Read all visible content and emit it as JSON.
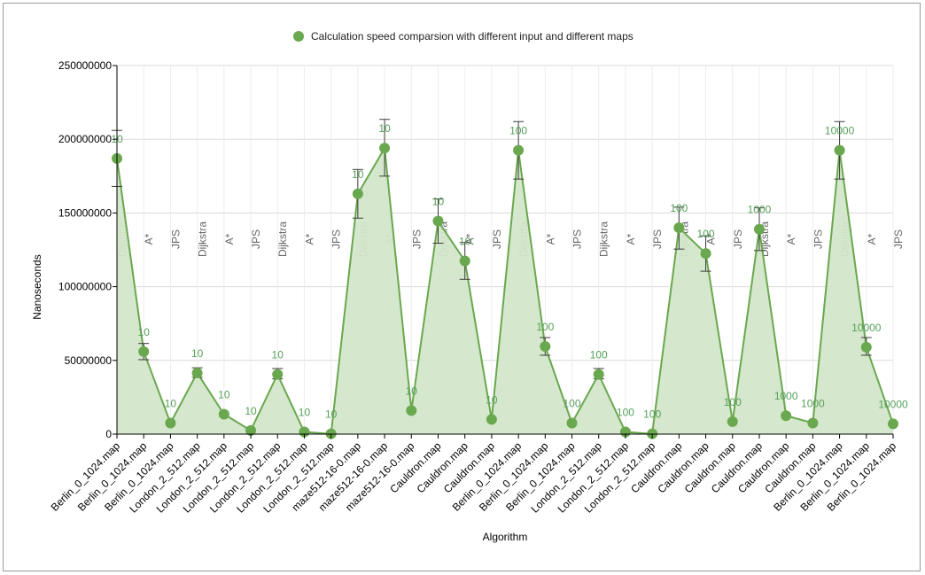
{
  "chart_data": {
    "type": "area",
    "title": "",
    "legend": {
      "label": "Calculation speed comparsion with different input and different maps",
      "position": "top-center",
      "color": "#6aa84f"
    },
    "xlabel": "Algorithm",
    "ylabel": "Nanoseconds",
    "ylim": [
      0,
      250000000
    ],
    "yticks": [
      "0",
      "50000000",
      "100000000",
      "150000000",
      "200000000",
      "250000000"
    ],
    "grid": true,
    "colors": {
      "line": "#6aa84f",
      "fill": "#d3e6c9",
      "marker": "#6aa84f",
      "label": "#57a05a"
    },
    "categories": [
      "Berlin_0_1024.map",
      "Berlin_0_1024.map",
      "Berlin_0_1024.map",
      "London_2_512.map",
      "London_2_512.map",
      "London_2_512.map",
      "London_2_512.map",
      "London_2_512.map",
      "London_2_512.map",
      "maze512-16-0.map",
      "maze512-16-0.map",
      "maze512-16-0.map",
      "Cauldron.map",
      "Cauldron.map",
      "Cauldron.map",
      "Berlin_0_1024.map",
      "Berlin_0_1024.map",
      "Berlin_0_1024.map",
      "London_2_512.map",
      "London_2_512.map",
      "London_2_512.map",
      "Cauldron.map",
      "Cauldron.map",
      "Cauldron.map",
      "Cauldron.map",
      "Cauldron.map",
      "Cauldron.map",
      "Berlin_0_1024.map",
      "Berlin_0_1024.map",
      "Berlin_0_1024.map"
    ],
    "algorithms": [
      "Dijkstra",
      "A*",
      "JPS",
      "Dijkstra",
      "A*",
      "JPS",
      "Dijkstra",
      "A*",
      "JPS",
      "Dijkstra",
      "A*",
      "JPS",
      "Dijkstra",
      "A*",
      "JPS",
      "Dijkstra",
      "A*",
      "JPS",
      "Dijkstra",
      "A*",
      "JPS",
      "Dijkstra",
      "A*",
      "JPS",
      "Dijkstra",
      "A*",
      "JPS",
      "Dijkstra",
      "A*",
      "JPS"
    ],
    "inputs": [
      "10",
      "10",
      "10",
      "10",
      "10",
      "10",
      "10",
      "10",
      "10",
      "10",
      "10",
      "10",
      "10",
      "10",
      "10",
      "100",
      "100",
      "100",
      "100",
      "100",
      "100",
      "100",
      "100",
      "100",
      "1000",
      "1000",
      "1000",
      "10000",
      "10000",
      "10000"
    ],
    "values": [
      187000000,
      56000000,
      7500000,
      41500000,
      13500000,
      2500000,
      40500000,
      1500000,
      200000,
      163000000,
      194000000,
      16000000,
      144500000,
      117500000,
      10000000,
      192500000,
      59500000,
      7500000,
      40500000,
      1500000,
      200000,
      140000000,
      122500000,
      8500000,
      139000000,
      12500000,
      7500000,
      192500000,
      59000000,
      7000000
    ],
    "error_low": [
      168000000,
      50500000,
      7500000,
      38500000,
      13500000,
      2500000,
      37500000,
      1500000,
      200000,
      146500000,
      175000000,
      16000000,
      129500000,
      105000000,
      10000000,
      173000000,
      53500000,
      7500000,
      37500000,
      1500000,
      200000,
      125500000,
      110500000,
      8500000,
      124500000,
      12500000,
      7500000,
      173000000,
      53500000,
      7000000
    ],
    "error_high": [
      206000000,
      61500000,
      7500000,
      45000000,
      13500000,
      2500000,
      44500000,
      1500000,
      200000,
      179500000,
      213500000,
      16000000,
      159500000,
      130000000,
      10000000,
      212000000,
      65500000,
      7500000,
      44500000,
      1500000,
      200000,
      154000000,
      134500000,
      8500000,
      153500000,
      12500000,
      7500000,
      212000000,
      65500000,
      7000000
    ]
  }
}
